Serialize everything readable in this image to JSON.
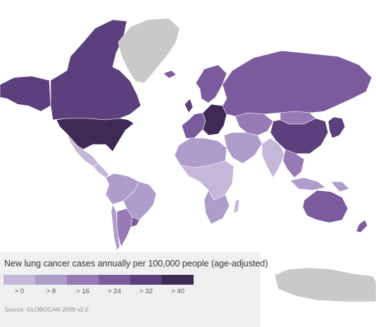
{
  "legend": {
    "title": "New lung cancer cases annually per 100,000 people (age-adjusted)",
    "bins": [
      {
        "label": "> 0",
        "color": "#c5b7d8"
      },
      {
        "label": "> 8",
        "color": "#ae9ccb"
      },
      {
        "label": "> 16",
        "color": "#9679b5"
      },
      {
        "label": "> 24",
        "color": "#7b5b9d"
      },
      {
        "label": "> 32",
        "color": "#5c3f7d"
      },
      {
        "label": "> 40",
        "color": "#3e2a55"
      }
    ],
    "source": "Source: GLOBOCAN 2008 v2.0"
  },
  "map_colors": {
    "no_data": "#c9c9c9",
    "ocean": "#ffffff",
    "border": "#ffffff"
  },
  "regions": [
    {
      "id": "alaska",
      "bin": 4
    },
    {
      "id": "canada",
      "bin": 4
    },
    {
      "id": "usa",
      "bin": 5
    },
    {
      "id": "mexico",
      "bin": 0
    },
    {
      "id": "central-america",
      "bin": 0
    },
    {
      "id": "greenland",
      "bin": -1
    },
    {
      "id": "south-america-north",
      "bin": 1
    },
    {
      "id": "brazil",
      "bin": 1
    },
    {
      "id": "argentina",
      "bin": 2
    },
    {
      "id": "chile",
      "bin": 1
    },
    {
      "id": "uruguay",
      "bin": 3
    },
    {
      "id": "western-europe",
      "bin": 3
    },
    {
      "id": "central-europe",
      "bin": 5
    },
    {
      "id": "scandinavia",
      "bin": 3
    },
    {
      "id": "uk",
      "bin": 4
    },
    {
      "id": "iceland",
      "bin": 3
    },
    {
      "id": "russia",
      "bin": 3
    },
    {
      "id": "central-asia",
      "bin": 2
    },
    {
      "id": "middle-east",
      "bin": 1
    },
    {
      "id": "north-africa",
      "bin": 1
    },
    {
      "id": "sub-saharan-africa",
      "bin": 0
    },
    {
      "id": "southern-africa",
      "bin": 1
    },
    {
      "id": "madagascar",
      "bin": 0
    },
    {
      "id": "india",
      "bin": 0
    },
    {
      "id": "china",
      "bin": 4
    },
    {
      "id": "mongolia",
      "bin": 2
    },
    {
      "id": "korea-japan",
      "bin": 4
    },
    {
      "id": "southeast-asia",
      "bin": 2
    },
    {
      "id": "indonesia",
      "bin": 1
    },
    {
      "id": "papua",
      "bin": 1
    },
    {
      "id": "australia",
      "bin": 3
    },
    {
      "id": "new-zealand",
      "bin": 3
    },
    {
      "id": "antarctica",
      "bin": -1
    }
  ]
}
